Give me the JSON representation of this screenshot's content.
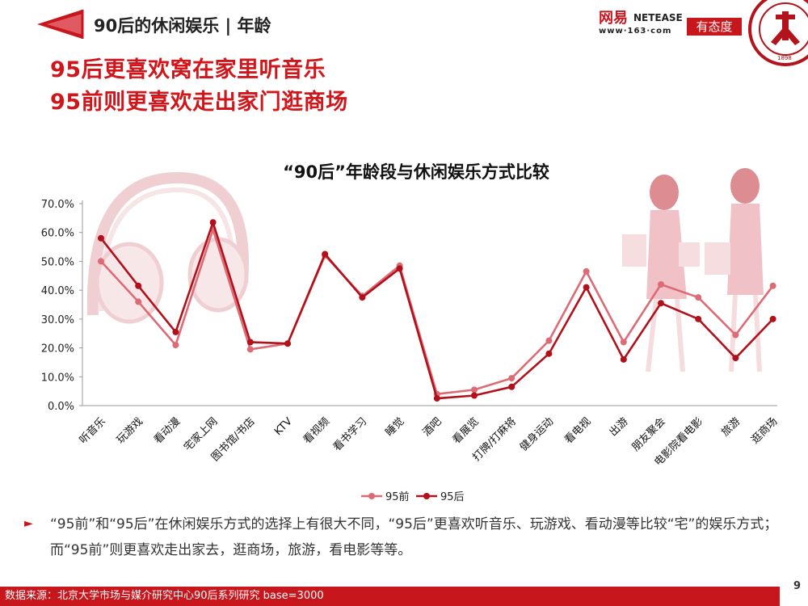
{
  "header": {
    "section_title": "90后的休闲娱乐 | 年龄",
    "headline_1": "95后更喜欢窝在家里听音乐",
    "headline_2": "95前则更喜欢走出家门逛商场"
  },
  "logos": {
    "netease_cn": "网易",
    "netease_en": "NETEASE",
    "netease_url": "www·163·com",
    "youtaidu": "有态度",
    "pku_year": "1898"
  },
  "colors": {
    "accent": "#c8161d",
    "series_pre95": "#dd6b75",
    "series_post95": "#b2101a"
  },
  "chart_data": {
    "type": "line",
    "title": "“90后”年龄段与休闲娱乐方式比较",
    "categories": [
      "听音乐",
      "玩游戏",
      "看动漫",
      "宅家上网",
      "图书馆/书店",
      "KTV",
      "看视频",
      "看书学习",
      "睡觉",
      "酒吧",
      "看展览",
      "打牌/打麻将",
      "健身运动",
      "看电视",
      "出游",
      "朋友聚会",
      "电影院看电影",
      "旅游",
      "逛商场"
    ],
    "yticks": [
      "70.0%",
      "60.0%",
      "50.0%",
      "40.0%",
      "30.0%",
      "20.0%",
      "10.0%",
      "0.0%"
    ],
    "ylim": [
      0,
      70
    ],
    "series": [
      {
        "name": "95前",
        "values": [
          50.0,
          36.0,
          21.0,
          61.0,
          19.5,
          21.5,
          52.0,
          38.0,
          48.5,
          4.0,
          5.5,
          9.5,
          22.5,
          46.5,
          22.0,
          42.0,
          37.5,
          24.5,
          41.5
        ]
      },
      {
        "name": "95后",
        "values": [
          58.0,
          41.5,
          25.5,
          63.5,
          22.0,
          21.5,
          52.5,
          37.5,
          47.5,
          2.5,
          3.5,
          6.5,
          18.0,
          41.0,
          16.0,
          35.5,
          30.0,
          16.5,
          30.0
        ]
      }
    ],
    "legend": [
      "95前",
      "95后"
    ],
    "legend_position": "bottom"
  },
  "summary": "“95前”和“95后”在休闲娱乐方式的选择上有很大不同，“95后”更喜欢听音乐、玩游戏、看动漫等比较“宅”的娱乐方式；而“95前”则更喜欢走出家去，逛商场，旅游，看电影等等。",
  "footer": {
    "source": "数据来源：北京大学市场与媒介研究中心90后系列研究 base=3000",
    "page_number": "9"
  }
}
